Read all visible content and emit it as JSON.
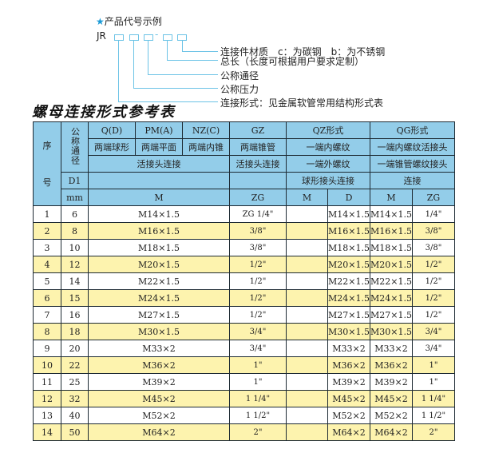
{
  "legend": {
    "heading": "产品代号示例",
    "code_prefix": "JR",
    "code_separator": "-",
    "items": [
      "连接件材质　c：为碳钢　b：为不锈钢",
      "总长（长度可根据用户要求定制）",
      "公称通径",
      "公称压力",
      "连接形式：见金属软管常用结构形式表"
    ],
    "accent_color": "#1a9ad6"
  },
  "table_title": "螺母连接形式参考表",
  "header": {
    "seq": "序号",
    "seq_top": "序",
    "seq_bottom": "号",
    "nominal": "公称通径",
    "types": [
      "Q(D)",
      "PM(A)",
      "NZ(C)",
      "GZ",
      "QZ形式",
      "QG形式"
    ],
    "desc": [
      "两端球形",
      "两端平面",
      "两端内锥",
      "两端锥管",
      "一端内螺纹",
      "一端内螺纹活接头"
    ],
    "conn1": [
      "活接头连接",
      "活接头连接",
      "一端外螺纹",
      "一端锥管螺纹接头"
    ],
    "d1": "D1",
    "conn2": [
      "球形接头连接",
      "连接"
    ],
    "mm": "mm",
    "units": [
      "M",
      "ZG",
      "M",
      "D",
      "M",
      "ZG"
    ]
  },
  "rows": [
    {
      "no": "1",
      "d": "6",
      "m": "M14×1.5",
      "zg": "ZG 1/4\"",
      "qz_m": "",
      "qz_d": "M14×1.5",
      "qg_m": "M14×1.5",
      "qg_zg": "1/4\""
    },
    {
      "no": "2",
      "d": "8",
      "m": "M16×1.5",
      "zg": "3/8\"",
      "qz_m": "",
      "qz_d": "M16×1.5",
      "qg_m": "M16×1.5",
      "qg_zg": "3/8\""
    },
    {
      "no": "3",
      "d": "10",
      "m": "M18×1.5",
      "zg": "3/8\"",
      "qz_m": "",
      "qz_d": "M18×1.5",
      "qg_m": "M18×1.5",
      "qg_zg": "3/8\""
    },
    {
      "no": "4",
      "d": "12",
      "m": "M20×1.5",
      "zg": "1/2\"",
      "qz_m": "",
      "qz_d": "M20×1.5",
      "qg_m": "M20×1.5",
      "qg_zg": "1/2\""
    },
    {
      "no": "5",
      "d": "14",
      "m": "M22×1.5",
      "zg": "1/2\"",
      "qz_m": "",
      "qz_d": "M22×1.5",
      "qg_m": "M22×1.5",
      "qg_zg": "1/2\""
    },
    {
      "no": "6",
      "d": "15",
      "m": "M24×1.5",
      "zg": "1/2\"",
      "qz_m": "",
      "qz_d": "M24×1.5",
      "qg_m": "M24×1.5",
      "qg_zg": "1/2\""
    },
    {
      "no": "7",
      "d": "16",
      "m": "M27×1.5",
      "zg": "1/2\"",
      "qz_m": "",
      "qz_d": "M27×1.5",
      "qg_m": "M27×1.5",
      "qg_zg": "1/2\""
    },
    {
      "no": "8",
      "d": "18",
      "m": "M30×1.5",
      "zg": "3/4\"",
      "qz_m": "",
      "qz_d": "M30×1.5",
      "qg_m": "M30×1.5",
      "qg_zg": "3/4\""
    },
    {
      "no": "9",
      "d": "20",
      "m": "M33×2",
      "zg": "3/4\"",
      "qz_m": "",
      "qz_d": "M33×2",
      "qg_m": "M33×2",
      "qg_zg": "3/4\""
    },
    {
      "no": "10",
      "d": "22",
      "m": "M36×2",
      "zg": "1\"",
      "qz_m": "",
      "qz_d": "M36×2",
      "qg_m": "M36×2",
      "qg_zg": "1\""
    },
    {
      "no": "11",
      "d": "25",
      "m": "M39×2",
      "zg": "1\"",
      "qz_m": "",
      "qz_d": "M39×2",
      "qg_m": "M39×2",
      "qg_zg": "1\""
    },
    {
      "no": "12",
      "d": "32",
      "m": "M45×2",
      "zg": "1 1/4\"",
      "qz_m": "",
      "qz_d": "M45×2",
      "qg_m": "M45×2",
      "qg_zg": "1 1/4\""
    },
    {
      "no": "13",
      "d": "40",
      "m": "M52×2",
      "zg": "1 1/2\"",
      "qz_m": "",
      "qz_d": "M52×2",
      "qg_m": "M52×2",
      "qg_zg": "1 1/2\""
    },
    {
      "no": "14",
      "d": "50",
      "m": "M64×2",
      "zg": "2\"",
      "qz_m": "",
      "qz_d": "M64×2",
      "qg_m": "M64×2",
      "qg_zg": "2\""
    }
  ],
  "colors": {
    "header_bg": "#93cde9",
    "even_row_bg": "#fdf3ae",
    "border": "#1d2a33"
  }
}
